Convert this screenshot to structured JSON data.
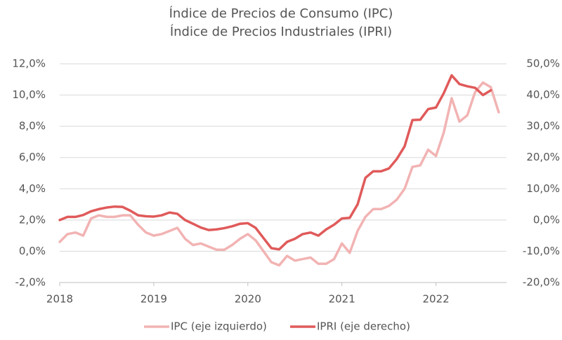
{
  "chart_data": {
    "type": "line",
    "title": "Índice de Precios de Consumo (IPC)",
    "subtitle": "Índice de Precios Industriales (IPRI)",
    "x": [
      2018,
      2018.083,
      2018.167,
      2018.25,
      2018.333,
      2018.417,
      2018.5,
      2018.583,
      2018.667,
      2018.75,
      2018.833,
      2018.917,
      2019,
      2019.083,
      2019.167,
      2019.25,
      2019.333,
      2019.417,
      2019.5,
      2019.583,
      2019.667,
      2019.75,
      2019.833,
      2019.917,
      2020,
      2020.083,
      2020.167,
      2020.25,
      2020.333,
      2020.417,
      2020.5,
      2020.583,
      2020.667,
      2020.75,
      2020.833,
      2020.917,
      2021,
      2021.083,
      2021.167,
      2021.25,
      2021.333,
      2021.417,
      2021.5,
      2021.583,
      2021.667,
      2021.75,
      2021.833,
      2021.917,
      2022,
      2022.083,
      2022.167,
      2022.25,
      2022.333,
      2022.417,
      2022.5,
      2022.583,
      2022.667
    ],
    "series": [
      {
        "name": "IPC (eje izquierdo)",
        "color": "#f2b3b3",
        "axis": "y",
        "values": [
          0.6,
          1.1,
          1.2,
          1.0,
          2.1,
          2.3,
          2.2,
          2.2,
          2.3,
          2.3,
          1.7,
          1.2,
          1.0,
          1.1,
          1.3,
          1.5,
          0.8,
          0.4,
          0.5,
          0.3,
          0.1,
          0.1,
          0.4,
          0.8,
          1.1,
          0.7,
          0.0,
          -0.7,
          -0.9,
          -0.3,
          -0.6,
          -0.5,
          -0.4,
          -0.8,
          -0.8,
          -0.5,
          0.5,
          -0.1,
          1.3,
          2.2,
          2.7,
          2.7,
          2.9,
          3.3,
          4.0,
          5.4,
          5.5,
          6.5,
          6.1,
          7.6,
          9.8,
          8.3,
          8.7,
          10.2,
          10.8,
          10.5,
          8.9
        ]
      },
      {
        "name": "IPRI (eje derecho)",
        "color": "#e05a5a",
        "axis": "y2",
        "values": [
          0.0,
          1.0,
          1.0,
          1.6,
          2.8,
          3.5,
          4.0,
          4.3,
          4.2,
          3.0,
          1.5,
          1.2,
          1.1,
          1.5,
          2.4,
          2.0,
          0.0,
          -1.2,
          -2.4,
          -3.2,
          -3.0,
          -2.6,
          -2.0,
          -1.2,
          -1.0,
          -2.5,
          -5.8,
          -9.0,
          -9.4,
          -7.0,
          -6.0,
          -4.5,
          -4.0,
          -5.0,
          -3.0,
          -1.5,
          0.5,
          0.7,
          5.0,
          13.5,
          15.6,
          15.6,
          16.5,
          19.5,
          23.6,
          32.0,
          32.1,
          35.5,
          36.0,
          40.6,
          46.3,
          43.5,
          42.8,
          42.3,
          40.0,
          41.5,
          null
        ]
      }
    ],
    "xlim": [
      2018,
      2022.75
    ],
    "xticks": [
      2018,
      2019,
      2020,
      2021,
      2022
    ],
    "ylim": [
      -2,
      12
    ],
    "yticks": [
      {
        "value": -2,
        "label": "-2,0%"
      },
      {
        "value": 0,
        "label": "0,0%"
      },
      {
        "value": 2,
        "label": "2,0%"
      },
      {
        "value": 4,
        "label": "4,0%"
      },
      {
        "value": 6,
        "label": "6,0%"
      },
      {
        "value": 8,
        "label": "8,0%"
      },
      {
        "value": 10,
        "label": "10,0%"
      },
      {
        "value": 12,
        "label": "12,0%"
      }
    ],
    "y2lim": [
      -20,
      50
    ],
    "y2ticks": [
      {
        "value": -20,
        "label": "-20,0%"
      },
      {
        "value": -10,
        "label": "-10,0%"
      },
      {
        "value": 0,
        "label": "0,0%"
      },
      {
        "value": 10,
        "label": "10,0%"
      },
      {
        "value": 20,
        "label": "20,0%"
      },
      {
        "value": 30,
        "label": "30,0%"
      },
      {
        "value": 40,
        "label": "40,0%"
      },
      {
        "value": 50,
        "label": "50,0%"
      }
    ],
    "grid": true,
    "legend": "bottom"
  }
}
